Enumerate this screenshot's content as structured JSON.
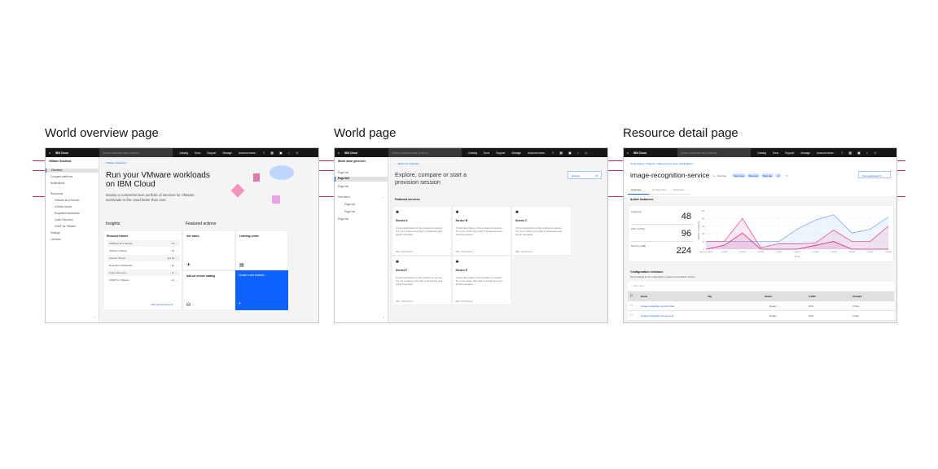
{
  "titles": [
    "World overview page",
    "World page",
    "Resource detail page"
  ],
  "header": {
    "brand": "IBM Cloud",
    "search_placeholder": "Search resources and products...",
    "nav": [
      "Catalog",
      "Docs",
      "Support",
      "Manage",
      "Account name..."
    ]
  },
  "p1": {
    "side_title": "VMware Solutions",
    "items": [
      "Overview",
      "Compare platforms",
      "Notifications"
    ],
    "resources": "Resources",
    "sub": [
      "VMware as a Service",
      "vCenter Server",
      "Regulated Workloads",
      "Cyber Recovery",
      "KMSP for VMware"
    ],
    "bottom": [
      "Settings",
      "Licenses"
    ],
    "breadcrumb": "VMware Solutions  /",
    "hero_title": "Run your VMware workloads on IBM Cloud",
    "hero_desc": "Deploy a comprehensive portfolio of services for VMware workloads to the cloud faster than ever.",
    "insights": "Insights",
    "featured": "Featured actions",
    "tracker_title": "Resource tracker",
    "tracker": [
      {
        "name": "VMWare as a Service",
        "warn": "",
        "count": "2"
      },
      {
        "name": "VMware Shared",
        "warn": "",
        "count": "5"
      },
      {
        "name": "vCenter Server",
        "warn": "2",
        "count": "3"
      },
      {
        "name": "Regulated Workloads",
        "warn": "",
        "count": "2"
      },
      {
        "name": "Cyber Recovery",
        "warn": "",
        "count": "1"
      },
      {
        "name": "KMSP for VMware",
        "warn": "",
        "count": "3"
      }
    ],
    "view_all": "View all resources",
    "use_cases": "Use cases",
    "learning": "Learning center",
    "addon": "Add-on service catalog",
    "blue_card": "Create a new instance"
  },
  "p2": {
    "side_title": "World name goes here",
    "links": [
      "Page link",
      "Page link",
      "Page link"
    ],
    "submenu": "Sub-menu",
    "sublinks": [
      "Page link",
      "Page link"
    ],
    "last": "Page link",
    "back": "Return to Overview",
    "title": "Explore, compare or start a provision session",
    "actions": "Actions",
    "featured": "Featured services",
    "services": [
      {
        "name": "Service A"
      },
      {
        "name": "Service B"
      },
      {
        "name": "Service C"
      },
      {
        "name": "Service F"
      },
      {
        "name": "Service E"
      }
    ],
    "desc": "A brief description of the product or service. Try not to write more than 3 sentences and avoid truncation.",
    "footer": "IBM • World Name"
  },
  "p3": {
    "breadcrumb": "Code Engine  /  Projects  /  data-services-scus  /  Applications  /",
    "title": "image-recognition-service",
    "status": "Running",
    "tags": [
      "Intent tag",
      "Beta tag",
      "Beta tag",
      "+3"
    ],
    "test_button": "Test application",
    "tabs": [
      "Overview",
      "Configuration",
      "Endpoints"
    ],
    "active": "Active instances",
    "metrics": [
      {
        "label": "Instances",
        "value": "48"
      },
      {
        "label": "CPU (vCPU)",
        "value": "96"
      },
      {
        "label": "Memory (GB)",
        "value": "224"
      }
    ],
    "revisions_title": "Configuration revisions",
    "revisions_desc": "Every change to the configuration creates an immutable revision.",
    "filter_placeholder": "Filter table",
    "columns": [
      "Name",
      "Tag",
      "Status",
      "Traffic",
      "Created"
    ],
    "rows": [
      {
        "name": "image-recognition-service-final",
        "tag": "",
        "status": "Ready",
        "traffic": "40%",
        "created": "Today"
      },
      {
        "name": "image-recognition-service-test",
        "tag": "",
        "status": "Ready",
        "traffic": "60%",
        "created": "Today"
      }
    ]
  },
  "chart_data": {
    "type": "area",
    "ylabel": "Number of instances",
    "xlabel": "Time",
    "ylim": [
      0,
      50
    ],
    "yticks": [
      "0",
      "10",
      "20",
      "30",
      "40",
      "50"
    ],
    "x": [
      "May 3, 12:00PM",
      "1:00PM",
      "2:00PM",
      "3:00PM",
      "4:00PM",
      "5:00PM",
      "6:00PM",
      "7:00PM",
      "8:00PM",
      "9:00PM",
      "10:00PM"
    ],
    "series": [
      {
        "color": "#78a9ff",
        "values": [
          10,
          10,
          10,
          10,
          10,
          26,
          38,
          45,
          21,
          26,
          42
        ]
      },
      {
        "color": "#d12771",
        "values": [
          0,
          5,
          21,
          0,
          0,
          0,
          5,
          10,
          0,
          0,
          0
        ]
      },
      {
        "color": "#ee5396",
        "values": [
          10,
          10,
          40,
          2,
          7,
          7,
          8,
          25,
          10,
          10,
          30
        ]
      }
    ],
    "grid": true
  },
  "colors": {
    "accent": "#0f62fe",
    "guide": "#d02670",
    "header": "#161616"
  }
}
